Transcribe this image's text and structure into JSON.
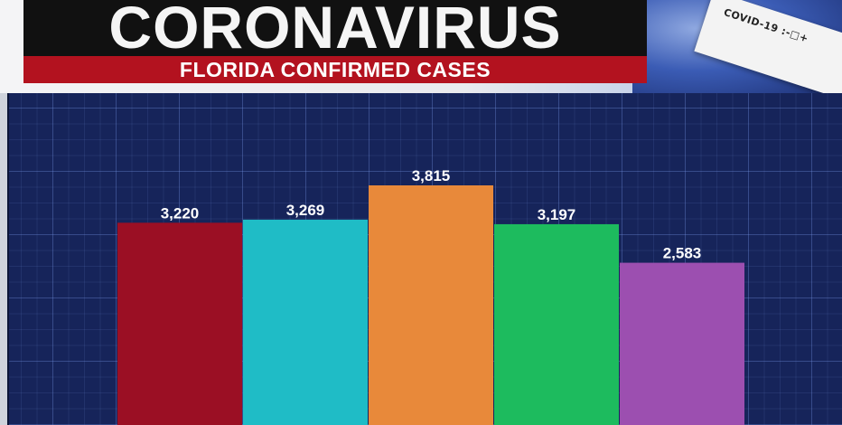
{
  "header": {
    "title": "CORONAVIRUS",
    "subtitle": "FLORIDA CONFIRMED CASES",
    "test_strip_text": "COVID-19 :-□+"
  },
  "colors": {
    "title_bg": "#111111",
    "subtitle_bg": "#b3121f",
    "panel_bg": "#16245a"
  },
  "chart_data": {
    "type": "bar",
    "title": "FLORIDA CONFIRMED CASES",
    "categories": [
      "",
      "",
      "",
      "",
      ""
    ],
    "values": [
      3220,
      3269,
      3815,
      3197,
      2583
    ],
    "labels": [
      "3,220",
      "3,269",
      "3,815",
      "3,197",
      "2,583"
    ],
    "bar_colors": [
      "#9b0f24",
      "#1fbcc6",
      "#e8893a",
      "#1dbb5e",
      "#9c4fb0"
    ],
    "grid": true,
    "legend": "none"
  }
}
